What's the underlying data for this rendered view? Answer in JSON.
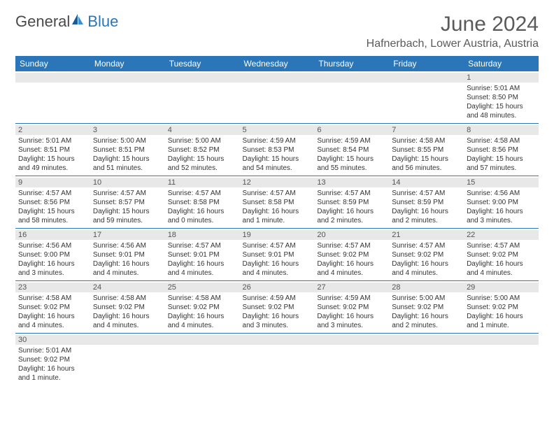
{
  "logo": {
    "part1": "General",
    "part2": "Blue"
  },
  "title": "June 2024",
  "location": "Hafnerbach, Lower Austria, Austria",
  "colors": {
    "header_bg": "#2a76b8",
    "header_fg": "#ffffff",
    "daynum_bg": "#e8e8e8",
    "border": "#2a76b8",
    "text": "#333333",
    "title": "#5a5a5a"
  },
  "weekdays": [
    "Sunday",
    "Monday",
    "Tuesday",
    "Wednesday",
    "Thursday",
    "Friday",
    "Saturday"
  ],
  "weeks": [
    [
      {
        "n": "",
        "text": ""
      },
      {
        "n": "",
        "text": ""
      },
      {
        "n": "",
        "text": ""
      },
      {
        "n": "",
        "text": ""
      },
      {
        "n": "",
        "text": ""
      },
      {
        "n": "",
        "text": ""
      },
      {
        "n": "1",
        "text": "Sunrise: 5:01 AM\nSunset: 8:50 PM\nDaylight: 15 hours and 48 minutes."
      }
    ],
    [
      {
        "n": "2",
        "text": "Sunrise: 5:01 AM\nSunset: 8:51 PM\nDaylight: 15 hours and 49 minutes."
      },
      {
        "n": "3",
        "text": "Sunrise: 5:00 AM\nSunset: 8:51 PM\nDaylight: 15 hours and 51 minutes."
      },
      {
        "n": "4",
        "text": "Sunrise: 5:00 AM\nSunset: 8:52 PM\nDaylight: 15 hours and 52 minutes."
      },
      {
        "n": "5",
        "text": "Sunrise: 4:59 AM\nSunset: 8:53 PM\nDaylight: 15 hours and 54 minutes."
      },
      {
        "n": "6",
        "text": "Sunrise: 4:59 AM\nSunset: 8:54 PM\nDaylight: 15 hours and 55 minutes."
      },
      {
        "n": "7",
        "text": "Sunrise: 4:58 AM\nSunset: 8:55 PM\nDaylight: 15 hours and 56 minutes."
      },
      {
        "n": "8",
        "text": "Sunrise: 4:58 AM\nSunset: 8:56 PM\nDaylight: 15 hours and 57 minutes."
      }
    ],
    [
      {
        "n": "9",
        "text": "Sunrise: 4:57 AM\nSunset: 8:56 PM\nDaylight: 15 hours and 58 minutes."
      },
      {
        "n": "10",
        "text": "Sunrise: 4:57 AM\nSunset: 8:57 PM\nDaylight: 15 hours and 59 minutes."
      },
      {
        "n": "11",
        "text": "Sunrise: 4:57 AM\nSunset: 8:58 PM\nDaylight: 16 hours and 0 minutes."
      },
      {
        "n": "12",
        "text": "Sunrise: 4:57 AM\nSunset: 8:58 PM\nDaylight: 16 hours and 1 minute."
      },
      {
        "n": "13",
        "text": "Sunrise: 4:57 AM\nSunset: 8:59 PM\nDaylight: 16 hours and 2 minutes."
      },
      {
        "n": "14",
        "text": "Sunrise: 4:57 AM\nSunset: 8:59 PM\nDaylight: 16 hours and 2 minutes."
      },
      {
        "n": "15",
        "text": "Sunrise: 4:56 AM\nSunset: 9:00 PM\nDaylight: 16 hours and 3 minutes."
      }
    ],
    [
      {
        "n": "16",
        "text": "Sunrise: 4:56 AM\nSunset: 9:00 PM\nDaylight: 16 hours and 3 minutes."
      },
      {
        "n": "17",
        "text": "Sunrise: 4:56 AM\nSunset: 9:01 PM\nDaylight: 16 hours and 4 minutes."
      },
      {
        "n": "18",
        "text": "Sunrise: 4:57 AM\nSunset: 9:01 PM\nDaylight: 16 hours and 4 minutes."
      },
      {
        "n": "19",
        "text": "Sunrise: 4:57 AM\nSunset: 9:01 PM\nDaylight: 16 hours and 4 minutes."
      },
      {
        "n": "20",
        "text": "Sunrise: 4:57 AM\nSunset: 9:02 PM\nDaylight: 16 hours and 4 minutes."
      },
      {
        "n": "21",
        "text": "Sunrise: 4:57 AM\nSunset: 9:02 PM\nDaylight: 16 hours and 4 minutes."
      },
      {
        "n": "22",
        "text": "Sunrise: 4:57 AM\nSunset: 9:02 PM\nDaylight: 16 hours and 4 minutes."
      }
    ],
    [
      {
        "n": "23",
        "text": "Sunrise: 4:58 AM\nSunset: 9:02 PM\nDaylight: 16 hours and 4 minutes."
      },
      {
        "n": "24",
        "text": "Sunrise: 4:58 AM\nSunset: 9:02 PM\nDaylight: 16 hours and 4 minutes."
      },
      {
        "n": "25",
        "text": "Sunrise: 4:58 AM\nSunset: 9:02 PM\nDaylight: 16 hours and 4 minutes."
      },
      {
        "n": "26",
        "text": "Sunrise: 4:59 AM\nSunset: 9:02 PM\nDaylight: 16 hours and 3 minutes."
      },
      {
        "n": "27",
        "text": "Sunrise: 4:59 AM\nSunset: 9:02 PM\nDaylight: 16 hours and 3 minutes."
      },
      {
        "n": "28",
        "text": "Sunrise: 5:00 AM\nSunset: 9:02 PM\nDaylight: 16 hours and 2 minutes."
      },
      {
        "n": "29",
        "text": "Sunrise: 5:00 AM\nSunset: 9:02 PM\nDaylight: 16 hours and 1 minute."
      }
    ],
    [
      {
        "n": "30",
        "text": "Sunrise: 5:01 AM\nSunset: 9:02 PM\nDaylight: 16 hours and 1 minute."
      },
      {
        "n": "",
        "text": ""
      },
      {
        "n": "",
        "text": ""
      },
      {
        "n": "",
        "text": ""
      },
      {
        "n": "",
        "text": ""
      },
      {
        "n": "",
        "text": ""
      },
      {
        "n": "",
        "text": ""
      }
    ]
  ]
}
